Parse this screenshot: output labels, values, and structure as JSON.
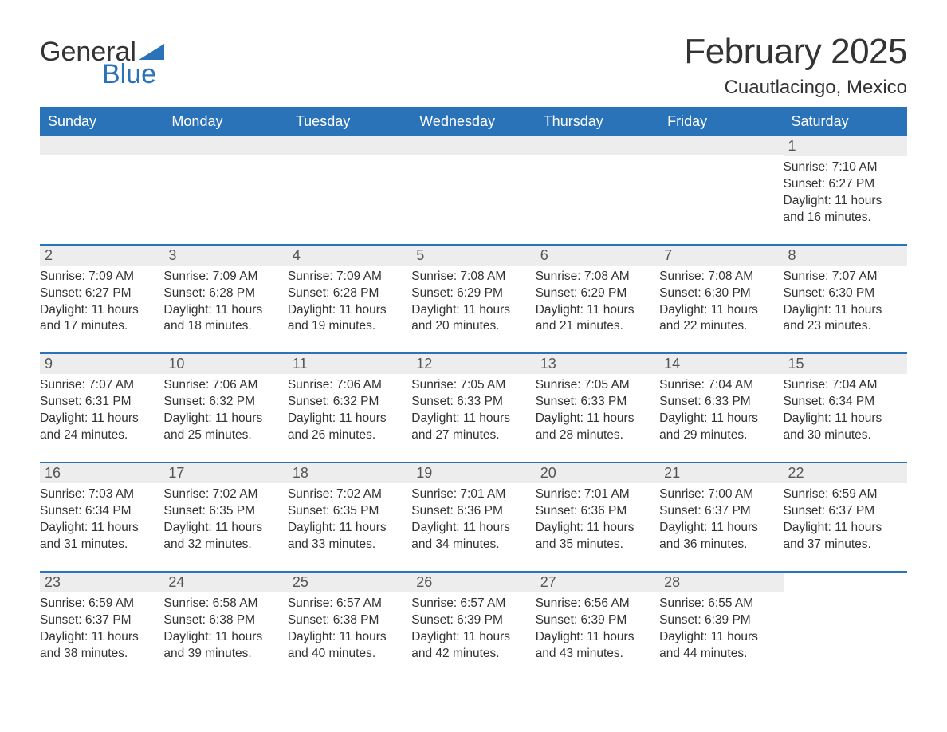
{
  "logo": {
    "word1": "General",
    "word2": "Blue",
    "triangle_color": "#2b73b8"
  },
  "title": "February 2025",
  "location": "Cuautlacingo, Mexico",
  "colors": {
    "header_bg": "#2b73b8",
    "header_text": "#ffffff",
    "daynum_bg": "#ededed",
    "text": "#333333",
    "rule": "#2b73b8"
  },
  "typography": {
    "title_fontsize": 44,
    "location_fontsize": 24,
    "dayhdr_fontsize": 18,
    "body_fontsize": 15.5
  },
  "day_headers": [
    "Sunday",
    "Monday",
    "Tuesday",
    "Wednesday",
    "Thursday",
    "Friday",
    "Saturday"
  ],
  "labels": {
    "sunrise": "Sunrise: ",
    "sunset": "Sunset: ",
    "daylight": "Daylight: "
  },
  "weeks": [
    [
      null,
      null,
      null,
      null,
      null,
      null,
      {
        "n": "1",
        "sunrise": "7:10 AM",
        "sunset": "6:27 PM",
        "daylight": "11 hours and 16 minutes."
      }
    ],
    [
      {
        "n": "2",
        "sunrise": "7:09 AM",
        "sunset": "6:27 PM",
        "daylight": "11 hours and 17 minutes."
      },
      {
        "n": "3",
        "sunrise": "7:09 AM",
        "sunset": "6:28 PM",
        "daylight": "11 hours and 18 minutes."
      },
      {
        "n": "4",
        "sunrise": "7:09 AM",
        "sunset": "6:28 PM",
        "daylight": "11 hours and 19 minutes."
      },
      {
        "n": "5",
        "sunrise": "7:08 AM",
        "sunset": "6:29 PM",
        "daylight": "11 hours and 20 minutes."
      },
      {
        "n": "6",
        "sunrise": "7:08 AM",
        "sunset": "6:29 PM",
        "daylight": "11 hours and 21 minutes."
      },
      {
        "n": "7",
        "sunrise": "7:08 AM",
        "sunset": "6:30 PM",
        "daylight": "11 hours and 22 minutes."
      },
      {
        "n": "8",
        "sunrise": "7:07 AM",
        "sunset": "6:30 PM",
        "daylight": "11 hours and 23 minutes."
      }
    ],
    [
      {
        "n": "9",
        "sunrise": "7:07 AM",
        "sunset": "6:31 PM",
        "daylight": "11 hours and 24 minutes."
      },
      {
        "n": "10",
        "sunrise": "7:06 AM",
        "sunset": "6:32 PM",
        "daylight": "11 hours and 25 minutes."
      },
      {
        "n": "11",
        "sunrise": "7:06 AM",
        "sunset": "6:32 PM",
        "daylight": "11 hours and 26 minutes."
      },
      {
        "n": "12",
        "sunrise": "7:05 AM",
        "sunset": "6:33 PM",
        "daylight": "11 hours and 27 minutes."
      },
      {
        "n": "13",
        "sunrise": "7:05 AM",
        "sunset": "6:33 PM",
        "daylight": "11 hours and 28 minutes."
      },
      {
        "n": "14",
        "sunrise": "7:04 AM",
        "sunset": "6:33 PM",
        "daylight": "11 hours and 29 minutes."
      },
      {
        "n": "15",
        "sunrise": "7:04 AM",
        "sunset": "6:34 PM",
        "daylight": "11 hours and 30 minutes."
      }
    ],
    [
      {
        "n": "16",
        "sunrise": "7:03 AM",
        "sunset": "6:34 PM",
        "daylight": "11 hours and 31 minutes."
      },
      {
        "n": "17",
        "sunrise": "7:02 AM",
        "sunset": "6:35 PM",
        "daylight": "11 hours and 32 minutes."
      },
      {
        "n": "18",
        "sunrise": "7:02 AM",
        "sunset": "6:35 PM",
        "daylight": "11 hours and 33 minutes."
      },
      {
        "n": "19",
        "sunrise": "7:01 AM",
        "sunset": "6:36 PM",
        "daylight": "11 hours and 34 minutes."
      },
      {
        "n": "20",
        "sunrise": "7:01 AM",
        "sunset": "6:36 PM",
        "daylight": "11 hours and 35 minutes."
      },
      {
        "n": "21",
        "sunrise": "7:00 AM",
        "sunset": "6:37 PM",
        "daylight": "11 hours and 36 minutes."
      },
      {
        "n": "22",
        "sunrise": "6:59 AM",
        "sunset": "6:37 PM",
        "daylight": "11 hours and 37 minutes."
      }
    ],
    [
      {
        "n": "23",
        "sunrise": "6:59 AM",
        "sunset": "6:37 PM",
        "daylight": "11 hours and 38 minutes."
      },
      {
        "n": "24",
        "sunrise": "6:58 AM",
        "sunset": "6:38 PM",
        "daylight": "11 hours and 39 minutes."
      },
      {
        "n": "25",
        "sunrise": "6:57 AM",
        "sunset": "6:38 PM",
        "daylight": "11 hours and 40 minutes."
      },
      {
        "n": "26",
        "sunrise": "6:57 AM",
        "sunset": "6:39 PM",
        "daylight": "11 hours and 42 minutes."
      },
      {
        "n": "27",
        "sunrise": "6:56 AM",
        "sunset": "6:39 PM",
        "daylight": "11 hours and 43 minutes."
      },
      {
        "n": "28",
        "sunrise": "6:55 AM",
        "sunset": "6:39 PM",
        "daylight": "11 hours and 44 minutes."
      },
      null
    ]
  ]
}
